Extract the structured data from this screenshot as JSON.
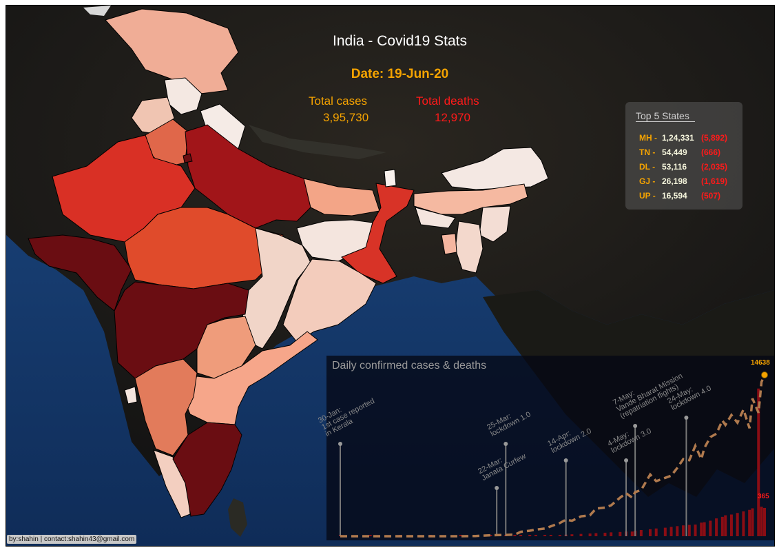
{
  "title": "India - Covid19 Stats",
  "date_label": "Date: 19-Jun-20",
  "totals": {
    "cases_label": "Total cases",
    "cases_value": "3,95,730",
    "deaths_label": "Total deaths",
    "deaths_value": "12,970"
  },
  "top5": {
    "title": "Top 5 States",
    "rows": [
      {
        "code": "MH -",
        "cases": "1,24,331",
        "deaths": "(5,892)"
      },
      {
        "code": "TN -",
        "cases": "54,449",
        "deaths": "(666)"
      },
      {
        "code": "DL -",
        "cases": "53,116",
        "deaths": "(2,035)"
      },
      {
        "code": "GJ -",
        "cases": "26,198",
        "deaths": "(1,619)"
      },
      {
        "code": "UP -",
        "cases": "16,594",
        "deaths": "(507)"
      }
    ]
  },
  "credit": "by:shahin | contact:shahin43@gmail.com",
  "colors": {
    "title": "#ffffff",
    "date": "#f5a300",
    "cases": "#f5a300",
    "deaths": "#ff1a1a",
    "sea": "#1b3a6b",
    "land_dark": "#141414"
  },
  "chart_data": {
    "type": "line",
    "title": "Daily confirmed cases & deaths",
    "last_cases_label": "14638",
    "last_deaths_label": "365",
    "annotations": [
      {
        "text": "30-Jan:\n1st case reported\nin Kerala",
        "day": 0
      },
      {
        "text": "22-Mar:\nJanata Curfew",
        "day": 52
      },
      {
        "text": "25-Mar:\nlockdown 1.0",
        "day": 55
      },
      {
        "text": "14-Apr:\nlockdown 2.0",
        "day": 75
      },
      {
        "text": "4-May:\nlockdown 3.0",
        "day": 95
      },
      {
        "text": "7-May:\nVande Bharat Mission\n(repatriation flights)",
        "day": 98
      },
      {
        "text": "24-May:\nlockdown 4.0",
        "day": 115
      }
    ],
    "series": [
      {
        "kind": "cases",
        "x": [
          0,
          10,
          20,
          30,
          40,
          45,
          50,
          52,
          55,
          58,
          60,
          63,
          65,
          68,
          70,
          73,
          75,
          77,
          80,
          83,
          85,
          88,
          90,
          93,
          95,
          97,
          98,
          100,
          103,
          105,
          108,
          110,
          112,
          114,
          116,
          118,
          120,
          121,
          123,
          125,
          127,
          128,
          130,
          132,
          134,
          136,
          137,
          139,
          140,
          141
        ],
        "values": [
          0,
          0,
          0,
          0,
          0,
          20,
          90,
          100,
          120,
          150,
          400,
          500,
          600,
          700,
          900,
          1200,
          1500,
          1400,
          1800,
          1900,
          2500,
          2600,
          2800,
          3500,
          3900,
          3500,
          4000,
          4200,
          5600,
          5000,
          5300,
          5500,
          6200,
          7000,
          6900,
          8200,
          7000,
          8000,
          9000,
          9300,
          10500,
          10100,
          11000,
          10300,
          11500,
          9800,
          12500,
          11200,
          14000,
          14638
        ]
      },
      {
        "kind": "deaths",
        "values": [
          0,
          0,
          0,
          0,
          0,
          1,
          2,
          2,
          3,
          4,
          6,
          5,
          8,
          10,
          12,
          15,
          20,
          25,
          30,
          35,
          40,
          45,
          50,
          55,
          60,
          60,
          70,
          80,
          90,
          100,
          110,
          120,
          130,
          140,
          146,
          150,
          175,
          180,
          200,
          230,
          250,
          270,
          280,
          300,
          320,
          340,
          360,
          2000,
          380,
          365
        ]
      }
    ],
    "grid": false
  }
}
